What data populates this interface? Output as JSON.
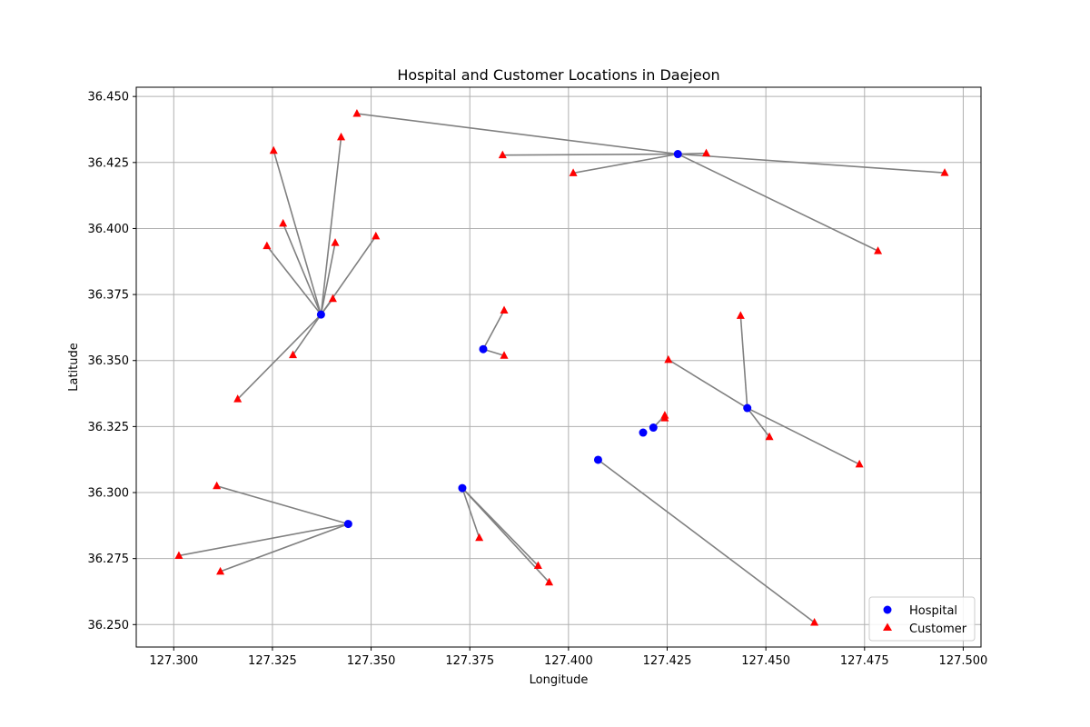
{
  "chart_data": {
    "type": "scatter",
    "title": "Hospital and Customer Locations in Daejeon",
    "xlabel": "Longitude",
    "ylabel": "Latitude",
    "xlim": [
      127.2905,
      127.5045
    ],
    "ylim": [
      36.2415,
      36.4535
    ],
    "x_ticks": [
      "127.300",
      "127.325",
      "127.350",
      "127.375",
      "127.400",
      "127.425",
      "127.450",
      "127.475",
      "127.500"
    ],
    "y_ticks": [
      "36.250",
      "36.275",
      "36.300",
      "36.325",
      "36.350",
      "36.375",
      "36.400",
      "36.425",
      "36.450"
    ],
    "grid": true,
    "legend_position": "lower-right",
    "colors": {
      "hospital": "#0000ff",
      "customer": "#ff0000",
      "line": "#808080"
    },
    "series": [
      {
        "name": "Hospital",
        "marker": "circle",
        "points": [
          {
            "x": 127.3373,
            "y": 36.3674
          },
          {
            "x": 127.4277,
            "y": 36.4282
          },
          {
            "x": 127.3784,
            "y": 36.3543
          },
          {
            "x": 127.4453,
            "y": 36.332
          },
          {
            "x": 127.4215,
            "y": 36.3246
          },
          {
            "x": 127.4189,
            "y": 36.3227
          },
          {
            "x": 127.4075,
            "y": 36.3124
          },
          {
            "x": 127.3731,
            "y": 36.3017
          },
          {
            "x": 127.3442,
            "y": 36.2881
          }
        ]
      },
      {
        "name": "Customer",
        "marker": "triangle",
        "points": [
          {
            "x": 127.3464,
            "y": 36.4435
          },
          {
            "x": 127.3424,
            "y": 36.4346
          },
          {
            "x": 127.3253,
            "y": 36.4295
          },
          {
            "x": 127.3277,
            "y": 36.4019
          },
          {
            "x": 127.3236,
            "y": 36.3934
          },
          {
            "x": 127.3409,
            "y": 36.3946
          },
          {
            "x": 127.3512,
            "y": 36.3971
          },
          {
            "x": 127.3403,
            "y": 36.3734
          },
          {
            "x": 127.3302,
            "y": 36.3521
          },
          {
            "x": 127.3162,
            "y": 36.3354
          },
          {
            "x": 127.3833,
            "y": 36.4278
          },
          {
            "x": 127.4349,
            "y": 36.4285
          },
          {
            "x": 127.4012,
            "y": 36.421
          },
          {
            "x": 127.4953,
            "y": 36.4211
          },
          {
            "x": 127.4784,
            "y": 36.3915
          },
          {
            "x": 127.3837,
            "y": 36.369
          },
          {
            "x": 127.3837,
            "y": 36.3519
          },
          {
            "x": 127.4436,
            "y": 36.367
          },
          {
            "x": 127.4253,
            "y": 36.3503
          },
          {
            "x": 127.4509,
            "y": 36.3211
          },
          {
            "x": 127.4737,
            "y": 36.3107
          },
          {
            "x": 127.4244,
            "y": 36.3292
          },
          {
            "x": 127.4244,
            "y": 36.3282
          },
          {
            "x": 127.4623,
            "y": 36.2508
          },
          {
            "x": 127.3774,
            "y": 36.2829
          },
          {
            "x": 127.3923,
            "y": 36.2723
          },
          {
            "x": 127.3951,
            "y": 36.266
          },
          {
            "x": 127.3109,
            "y": 36.3025
          },
          {
            "x": 127.3013,
            "y": 36.2761
          },
          {
            "x": 127.3118,
            "y": 36.2701
          }
        ]
      }
    ],
    "connections": [
      {
        "from": [
          127.3373,
          36.3674
        ],
        "to": [
          127.3253,
          36.4295
        ]
      },
      {
        "from": [
          127.3373,
          36.3674
        ],
        "to": [
          127.3424,
          36.4346
        ]
      },
      {
        "from": [
          127.3373,
          36.3674
        ],
        "to": [
          127.3277,
          36.4019
        ]
      },
      {
        "from": [
          127.3373,
          36.3674
        ],
        "to": [
          127.3236,
          36.3934
        ]
      },
      {
        "from": [
          127.3373,
          36.3674
        ],
        "to": [
          127.3409,
          36.3946
        ]
      },
      {
        "from": [
          127.3373,
          36.3674
        ],
        "to": [
          127.3512,
          36.3971
        ]
      },
      {
        "from": [
          127.3373,
          36.3674
        ],
        "to": [
          127.3403,
          36.3734
        ]
      },
      {
        "from": [
          127.3373,
          36.3674
        ],
        "to": [
          127.3302,
          36.3521
        ]
      },
      {
        "from": [
          127.3373,
          36.3674
        ],
        "to": [
          127.3162,
          36.3354
        ]
      },
      {
        "from": [
          127.4277,
          36.4282
        ],
        "to": [
          127.3464,
          36.4435
        ]
      },
      {
        "from": [
          127.4277,
          36.4282
        ],
        "to": [
          127.3833,
          36.4278
        ]
      },
      {
        "from": [
          127.4277,
          36.4282
        ],
        "to": [
          127.4349,
          36.4285
        ]
      },
      {
        "from": [
          127.4277,
          36.4282
        ],
        "to": [
          127.4012,
          36.421
        ]
      },
      {
        "from": [
          127.4277,
          36.4282
        ],
        "to": [
          127.4953,
          36.4211
        ]
      },
      {
        "from": [
          127.4277,
          36.4282
        ],
        "to": [
          127.4784,
          36.3915
        ]
      },
      {
        "from": [
          127.3784,
          36.3543
        ],
        "to": [
          127.3837,
          36.369
        ]
      },
      {
        "from": [
          127.3784,
          36.3543
        ],
        "to": [
          127.3837,
          36.3519
        ]
      },
      {
        "from": [
          127.4453,
          36.332
        ],
        "to": [
          127.4436,
          36.367
        ]
      },
      {
        "from": [
          127.4453,
          36.332
        ],
        "to": [
          127.4253,
          36.3503
        ]
      },
      {
        "from": [
          127.4453,
          36.332
        ],
        "to": [
          127.4509,
          36.3211
        ]
      },
      {
        "from": [
          127.4453,
          36.332
        ],
        "to": [
          127.4737,
          36.3107
        ]
      },
      {
        "from": [
          127.4215,
          36.3246
        ],
        "to": [
          127.4244,
          36.3292
        ]
      },
      {
        "from": [
          127.4075,
          36.3124
        ],
        "to": [
          127.4623,
          36.2508
        ]
      },
      {
        "from": [
          127.3731,
          36.3017
        ],
        "to": [
          127.3774,
          36.2829
        ]
      },
      {
        "from": [
          127.3731,
          36.3017
        ],
        "to": [
          127.3923,
          36.2723
        ]
      },
      {
        "from": [
          127.3731,
          36.3017
        ],
        "to": [
          127.3951,
          36.266
        ]
      },
      {
        "from": [
          127.3442,
          36.2881
        ],
        "to": [
          127.3109,
          36.3025
        ]
      },
      {
        "from": [
          127.3442,
          36.2881
        ],
        "to": [
          127.3013,
          36.2761
        ]
      },
      {
        "from": [
          127.3442,
          36.2881
        ],
        "to": [
          127.3118,
          36.2701
        ]
      }
    ]
  }
}
